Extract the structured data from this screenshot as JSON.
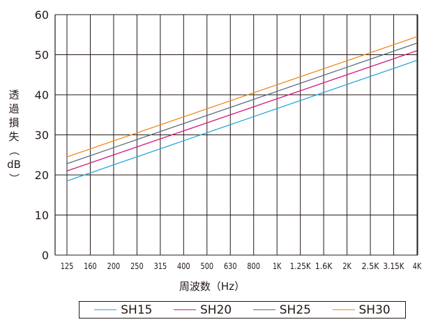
{
  "chart_data": {
    "type": "line",
    "xlabel": "周波数（Hz）",
    "ylabel_chars": [
      "透",
      "過",
      "損",
      "失"
    ],
    "ylabel_paren_open": "（",
    "ylabel_unit": "dB",
    "ylabel_paren_close": "）",
    "categories": [
      "125",
      "160",
      "200",
      "250",
      "315",
      "400",
      "500",
      "630",
      "800",
      "1K",
      "1.25K",
      "1.6K",
      "2K",
      "2.5K",
      "3.15K",
      "4K"
    ],
    "ylim": [
      0,
      60
    ],
    "yticks": [
      0,
      10,
      20,
      30,
      40,
      50,
      60
    ],
    "grid": true,
    "legend_position": "bottom",
    "series": [
      {
        "name": "SH15",
        "color": "#2aa7d8",
        "start": 18.5,
        "end": 48.6
      },
      {
        "name": "SH20",
        "color": "#d6157a",
        "start": 21.0,
        "end": 51.0
      },
      {
        "name": "SH25",
        "color": "#5a6e7a",
        "start": 22.8,
        "end": 52.9
      },
      {
        "name": "SH30",
        "color": "#ef8a1c",
        "start": 24.5,
        "end": 54.5
      }
    ]
  }
}
